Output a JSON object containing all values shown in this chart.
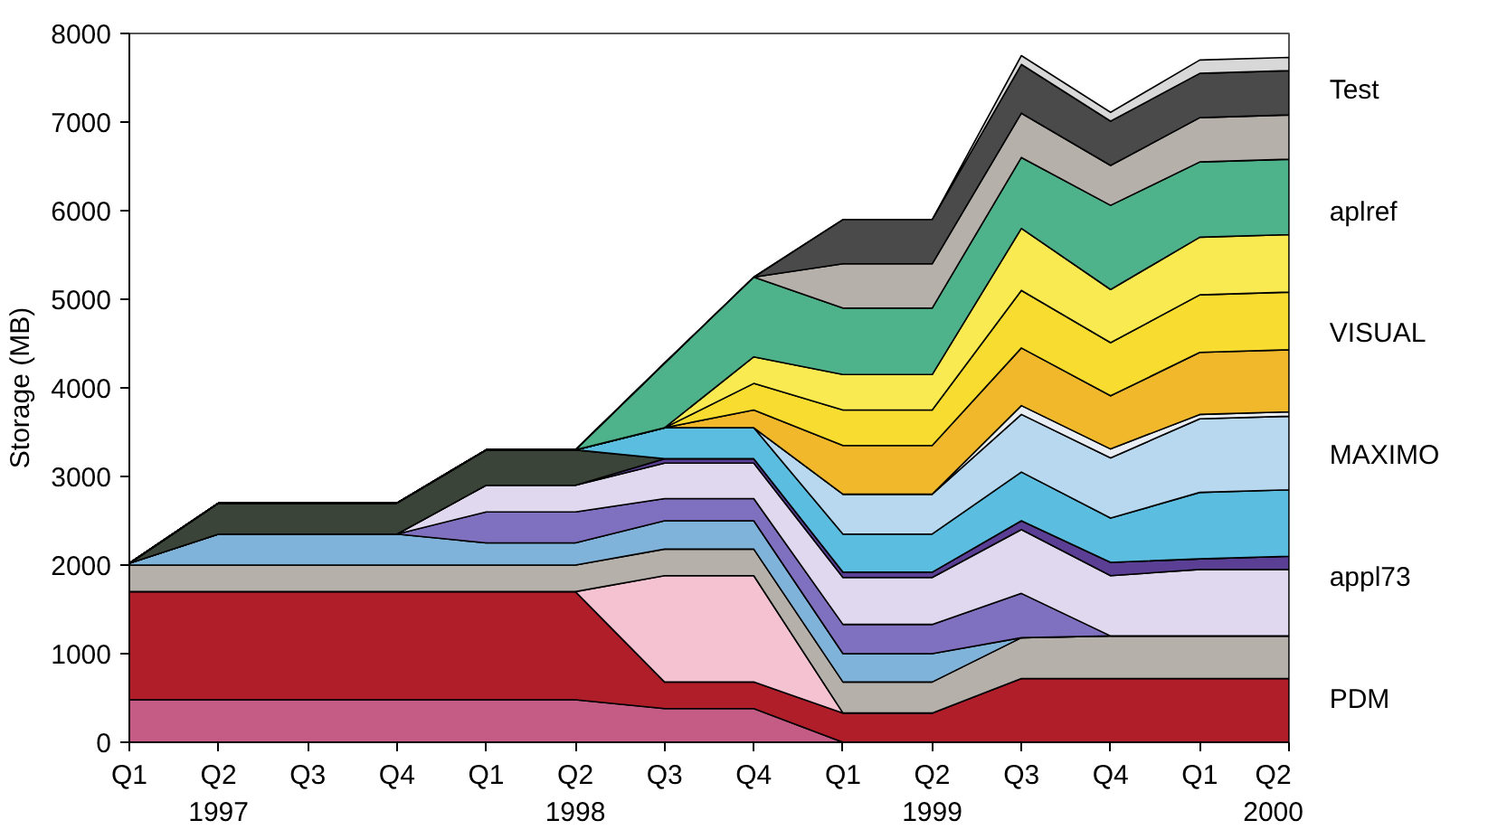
{
  "chart_data": {
    "type": "area",
    "stacked": true,
    "ylabel": "Storage (MB)",
    "x": [
      "1997-01",
      "1997-04",
      "1997-07",
      "1997-10",
      "1998-01",
      "1998-04",
      "1998-07",
      "1998-10",
      "1999-01",
      "1999-04",
      "1999-07",
      "1999-10",
      "2000-01",
      "2000-04"
    ],
    "xlim": [
      "1997-01",
      "2000-04"
    ],
    "xticks": [
      {
        "value": "1997-01",
        "label": "Q1"
      },
      {
        "value": "1997-04",
        "label": "Q2\n1997"
      },
      {
        "value": "1997-07",
        "label": "Q3"
      },
      {
        "value": "1997-10",
        "label": "Q4"
      },
      {
        "value": "1998-01",
        "label": "Q1"
      },
      {
        "value": "1998-04",
        "label": "Q2\n1998"
      },
      {
        "value": "1998-07",
        "label": "Q3"
      },
      {
        "value": "1998-10",
        "label": "Q4"
      },
      {
        "value": "1999-01",
        "label": "Q1"
      },
      {
        "value": "1999-04",
        "label": "Q2\n1999"
      },
      {
        "value": "1999-07",
        "label": "Q3"
      },
      {
        "value": "1999-10",
        "label": "Q4"
      },
      {
        "value": "2000-01",
        "label": "Q1"
      },
      {
        "value": "2000-04",
        "label": "Q2\n2000"
      }
    ],
    "ylim": [
      0,
      8000
    ],
    "yticks": [
      0,
      1000,
      2000,
      3000,
      4000,
      5000,
      6000,
      7000,
      8000
    ],
    "grid": false,
    "series": [
      {
        "color": "#c45c86",
        "values": [
          480,
          480,
          480,
          480,
          480,
          480,
          380,
          380,
          0,
          0,
          0,
          0,
          0,
          0
        ]
      },
      {
        "color": "#b01e2a",
        "values": [
          1220,
          1220,
          1220,
          1220,
          1220,
          1220,
          300,
          300,
          330,
          330,
          720,
          720,
          720,
          720
        ]
      },
      {
        "color": "#f4c2d0",
        "values": [
          0,
          0,
          0,
          0,
          0,
          0,
          1200,
          1200,
          0,
          0,
          0,
          0,
          0,
          0
        ]
      },
      {
        "color": "#b5b0aa",
        "values": [
          300,
          300,
          300,
          300,
          300,
          300,
          300,
          300,
          350,
          350,
          460,
          480,
          480,
          480
        ]
      },
      {
        "color": "#7fb3d9",
        "values": [
          20,
          350,
          350,
          350,
          250,
          250,
          320,
          320,
          320,
          320,
          0,
          0,
          0,
          0
        ]
      },
      {
        "color": "#8070c0",
        "values": [
          0,
          0,
          0,
          0,
          350,
          350,
          250,
          250,
          330,
          330,
          500,
          0,
          0,
          0
        ]
      },
      {
        "color": "#e0d8ee",
        "values": [
          0,
          0,
          0,
          0,
          300,
          300,
          400,
          400,
          530,
          530,
          720,
          680,
          750,
          750
        ]
      },
      {
        "color": "#5a3f94",
        "values": [
          0,
          0,
          0,
          0,
          0,
          0,
          50,
          50,
          60,
          60,
          100,
          150,
          120,
          150
        ]
      },
      {
        "color": "#3a4438",
        "values": [
          0,
          350,
          350,
          350,
          400,
          400,
          0,
          0,
          0,
          0,
          0,
          0,
          0,
          0
        ]
      },
      {
        "color": "#5bbde0",
        "values": [
          0,
          0,
          0,
          0,
          0,
          0,
          350,
          350,
          430,
          430,
          550,
          500,
          750,
          750
        ]
      },
      {
        "color": "#b8d8f0",
        "values": [
          0,
          0,
          0,
          0,
          0,
          0,
          0,
          0,
          450,
          450,
          650,
          680,
          830,
          830
        ]
      },
      {
        "color": "#e8eef4",
        "values": [
          0,
          0,
          0,
          0,
          0,
          0,
          0,
          0,
          0,
          0,
          100,
          100,
          50,
          50
        ]
      },
      {
        "color": "#f0b82a",
        "values": [
          0,
          0,
          0,
          0,
          0,
          0,
          0,
          200,
          550,
          550,
          650,
          600,
          700,
          700
        ]
      },
      {
        "color": "#f8dc30",
        "values": [
          0,
          0,
          0,
          0,
          0,
          0,
          0,
          300,
          400,
          400,
          650,
          600,
          650,
          650
        ]
      },
      {
        "color": "#faea52",
        "values": [
          0,
          0,
          0,
          0,
          0,
          0,
          0,
          300,
          400,
          400,
          700,
          600,
          650,
          650
        ]
      },
      {
        "color": "#4eb38a",
        "values": [
          0,
          0,
          0,
          0,
          0,
          0,
          730,
          900,
          750,
          750,
          800,
          950,
          850,
          850
        ]
      },
      {
        "color": "#b5b0aa",
        "values": [
          0,
          0,
          0,
          0,
          0,
          0,
          0,
          0,
          500,
          500,
          500,
          450,
          500,
          500
        ]
      },
      {
        "color": "#4a4a4a",
        "values": [
          0,
          0,
          0,
          0,
          0,
          0,
          0,
          0,
          500,
          500,
          550,
          500,
          500,
          500
        ]
      },
      {
        "color": "#d8d8d8",
        "values": [
          0,
          0,
          0,
          0,
          0,
          0,
          0,
          0,
          0,
          0,
          100,
          100,
          150,
          150
        ]
      }
    ],
    "annotations": [
      "Test",
      "aplref",
      "VISUAL",
      "MAXIMO",
      "appl73",
      "PDM"
    ]
  }
}
